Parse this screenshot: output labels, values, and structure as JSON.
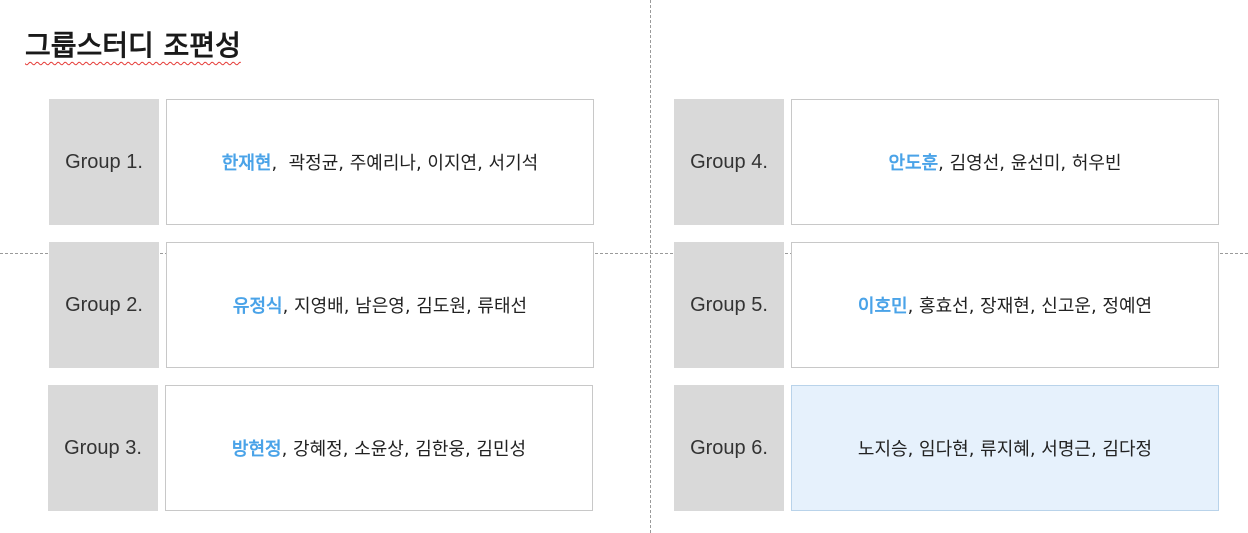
{
  "title": "그룹스터디 조편성",
  "groups": [
    {
      "label": "Group 1.",
      "leader": "한재현",
      "members": ",  곽정균, 주예리나, 이지연, 서기석"
    },
    {
      "label": "Group 2.",
      "leader": "유정식",
      "members": ", 지영배, 남은영, 김도원, 류태선"
    },
    {
      "label": "Group 3.",
      "leader": "방현정",
      "members": ", 강혜정, 소윤상, 김한웅, 김민성"
    },
    {
      "label": "Group 4.",
      "leader": "안도훈",
      "members": ", 김영선, 윤선미, 허우빈"
    },
    {
      "label": "Group 5.",
      "leader": "이호민",
      "members": ", 홍효선, 장재현, 신고운, 정예연"
    },
    {
      "label": "Group 6.",
      "leader": "",
      "members": "노지승, 임다현, 류지혜, 서명근, 김다정"
    }
  ],
  "colors": {
    "leader": "#4aa3e8",
    "label_bg": "#d9d9d9",
    "highlight_bg": "#e6f1fc"
  }
}
